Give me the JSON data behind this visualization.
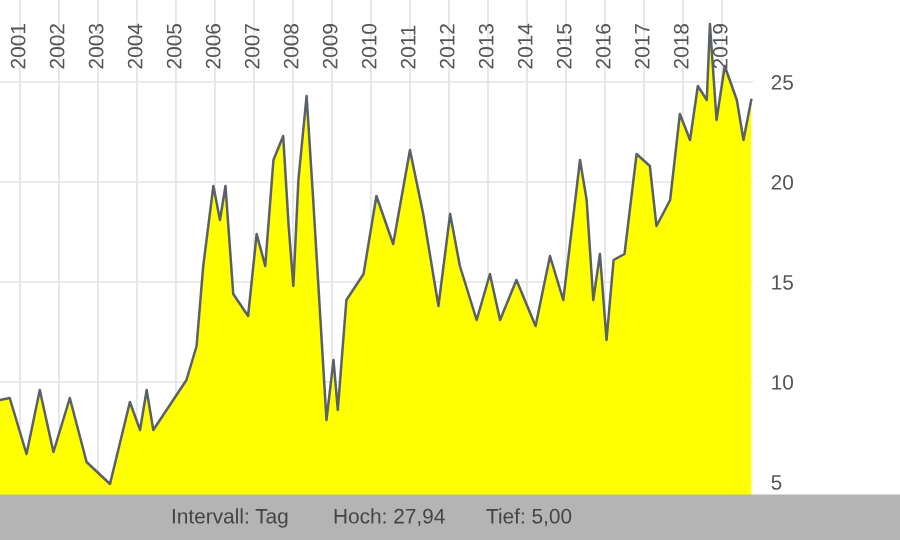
{
  "chart_data": {
    "type": "area",
    "x": [
      2000.49,
      2000.74,
      2001.17,
      2001.51,
      2001.86,
      2002.28,
      2002.71,
      2003.31,
      2003.82,
      2004.08,
      2004.25,
      2004.42,
      2004.93,
      2005.27,
      2005.53,
      2005.7,
      2005.96,
      2006.13,
      2006.27,
      2006.47,
      2006.85,
      2007.07,
      2007.29,
      2007.5,
      2007.75,
      2007.89,
      2008.01,
      2008.14,
      2008.35,
      2008.52,
      2008.86,
      2009.04,
      2009.15,
      2009.37,
      2009.81,
      2010.14,
      2010.57,
      2011.0,
      2011.34,
      2011.73,
      2012.03,
      2012.28,
      2012.71,
      2013.05,
      2013.31,
      2013.73,
      2014.22,
      2014.59,
      2014.93,
      2015.36,
      2015.53,
      2015.7,
      2015.87,
      2016.04,
      2016.22,
      2016.5,
      2016.81,
      2017.15,
      2017.32,
      2017.67,
      2017.92,
      2018.18,
      2018.38,
      2018.61,
      2018.69,
      2018.86,
      2019.07,
      2019.38,
      2019.55,
      2019.75
    ],
    "series": [
      {
        "color": "#ffff00",
        "values": [
          9.1,
          9.2,
          6.4,
          9.6,
          6.5,
          9.2,
          6.0,
          4.9,
          9.0,
          7.6,
          9.6,
          7.6,
          9.1,
          10.1,
          11.8,
          15.8,
          19.8,
          18.1,
          19.8,
          14.4,
          13.3,
          17.4,
          15.8,
          21.1,
          22.3,
          17.8,
          14.8,
          20.1,
          24.3,
          19.1,
          8.1,
          11.1,
          8.6,
          14.1,
          15.4,
          19.3,
          16.9,
          21.6,
          18.4,
          13.8,
          18.4,
          15.8,
          13.1,
          15.4,
          13.1,
          15.1,
          12.8,
          16.3,
          14.1,
          21.1,
          19.1,
          14.1,
          16.4,
          12.1,
          16.1,
          16.4,
          21.4,
          20.8,
          17.8,
          19.1,
          23.4,
          22.1,
          24.8,
          24.1,
          27.9,
          23.1,
          25.8,
          24.1,
          22.1,
          24.1
        ]
      }
    ],
    "xlim": [
      2000.49,
      2019.82
    ],
    "xticks": [
      2001,
      2002,
      2003,
      2004,
      2005,
      2006,
      2007,
      2008,
      2009,
      2010,
      2011,
      2012,
      2013,
      2014,
      2015,
      2016,
      2017,
      2018,
      2019
    ],
    "ylim": [
      4.3,
      29.1
    ],
    "yticks": [
      5,
      10,
      15,
      20,
      25
    ],
    "grid": true,
    "annotations": [
      "Intervall: Tag",
      "Hoch: 27,94",
      "Tief: 5,00"
    ]
  }
}
